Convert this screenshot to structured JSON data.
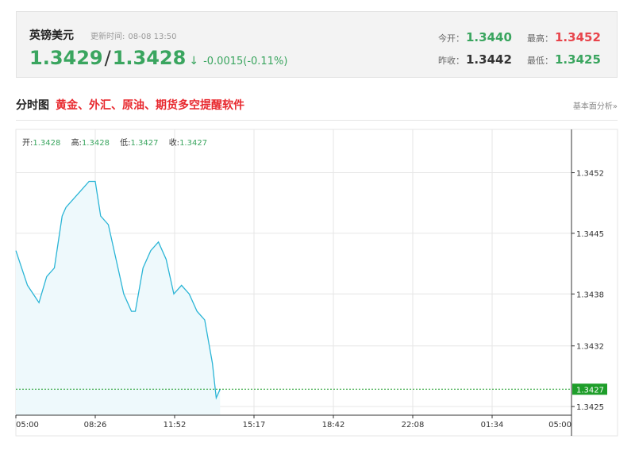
{
  "quote": {
    "name": "英镑美元",
    "update_label": "更新时间:",
    "update_time": "08-08 13:50",
    "price_bid": "1.3429",
    "price_ask": "1.3428",
    "arrow": "↓",
    "change": "-0.0015(-0.11%)",
    "open_label": "今开：",
    "open": "1.3440",
    "high_label": "最高：",
    "high": "1.3452",
    "prev_close_label": "昨收：",
    "prev_close": "1.3442",
    "low_label": "最低：",
    "low": "1.3425"
  },
  "section": {
    "title": "分时图",
    "ad_text": "黄金、外汇、原油、期货多空提醒软件",
    "link_text": "基本面分析»"
  },
  "ohlc": {
    "open_label": "开:",
    "open": "1.3428",
    "high_label": "高:",
    "high": "1.3428",
    "low_label": "低:",
    "low": "1.3427",
    "close_label": "收:",
    "close": "1.3427"
  },
  "colors": {
    "up": "#e8444b",
    "down": "#3aa55f",
    "line": "#2bb5d6",
    "area": "#eef9fc",
    "current_tag": "#1e9e2a",
    "grid": "#e6e6e6"
  },
  "chart_data": {
    "type": "area",
    "x_ticks": [
      "05:00",
      "08:26",
      "11:52",
      "15:17",
      "18:42",
      "22:08",
      "01:34",
      "05:00"
    ],
    "y_ticks": [
      1.3452,
      1.3445,
      1.3438,
      1.3432,
      1.3425
    ],
    "ylim": [
      1.3424,
      1.3457
    ],
    "current_value": 1.3427,
    "current_label": "1.3427",
    "grid": true,
    "series": [
      {
        "x": [
          "05:00",
          "05:30",
          "06:00",
          "06:20",
          "06:40",
          "07:00",
          "07:10",
          "07:30",
          "07:50",
          "08:10",
          "08:26",
          "08:40",
          "09:00",
          "09:20",
          "09:40",
          "10:00",
          "10:10",
          "10:30",
          "10:50",
          "11:10",
          "11:30",
          "11:50",
          "12:10",
          "12:30",
          "12:50",
          "13:10",
          "13:30",
          "13:40",
          "13:50"
        ],
        "values": [
          1.3443,
          1.3439,
          1.3437,
          1.344,
          1.3441,
          1.3447,
          1.3448,
          1.3449,
          1.345,
          1.3451,
          1.3451,
          1.3447,
          1.3446,
          1.3442,
          1.3438,
          1.3436,
          1.3436,
          1.3441,
          1.3443,
          1.3444,
          1.3442,
          1.3438,
          1.3439,
          1.3438,
          1.3436,
          1.3435,
          1.343,
          1.3426,
          1.3427
        ]
      }
    ]
  }
}
